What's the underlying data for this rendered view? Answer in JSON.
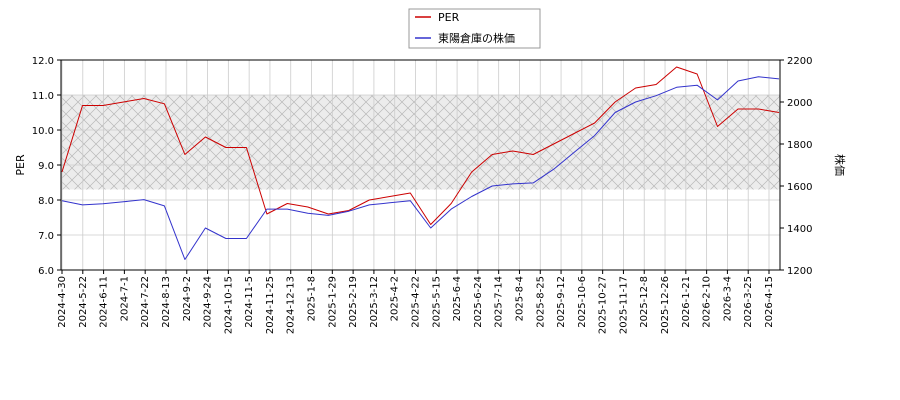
{
  "chart_data": {
    "type": "line",
    "ylabel_left": "PER",
    "ylabel_right": "株価",
    "ylim_left": [
      6.0,
      12.0
    ],
    "ylim_right": [
      1200,
      2200
    ],
    "yticks_left": [
      "6.0",
      "7.0",
      "8.0",
      "9.0",
      "10.0",
      "11.0",
      "12.0"
    ],
    "yticks_right": [
      "1200",
      "1400",
      "1600",
      "1800",
      "2000",
      "2200"
    ],
    "xticks": [
      "2024-4-30",
      "2024-5-22",
      "2024-6-11",
      "2024-7-1",
      "2024-7-22",
      "2024-8-13",
      "2024-9-2",
      "2024-9-24",
      "2024-10-15",
      "2024-11-5",
      "2024-11-25",
      "2024-12-13",
      "2025-1-8",
      "2025-1-29",
      "2025-2-19",
      "2025-3-12",
      "2025-4-2",
      "2025-4-22",
      "2025-5-15",
      "2025-6-4",
      "2025-6-24",
      "2025-7-14",
      "2025-8-4",
      "2025-8-25",
      "2025-9-12",
      "2025-10-6",
      "2025-10-27",
      "2025-11-17",
      "2025-12-8",
      "2025-12-26",
      "2026-1-21",
      "2026-2-10",
      "2026-3-4",
      "2026-3-25",
      "2026-4-15"
    ],
    "grid": true,
    "legend_position": "top-center",
    "shaded_band_left": [
      8.3,
      11.0
    ],
    "series": [
      {
        "name": "PER",
        "color": "#cc0000",
        "axis": "left",
        "x": [
          0,
          1,
          2,
          3,
          4,
          5,
          6,
          7,
          8,
          9,
          10,
          11,
          12,
          13,
          14,
          15,
          16,
          17,
          18,
          19,
          20,
          21,
          22,
          23,
          24,
          25,
          26,
          27,
          28,
          29,
          30,
          31,
          32,
          33,
          34,
          35
        ],
        "values": [
          8.8,
          10.7,
          10.7,
          10.8,
          10.9,
          10.75,
          9.3,
          9.8,
          9.5,
          9.5,
          7.6,
          7.9,
          7.8,
          7.6,
          7.7,
          8.0,
          8.1,
          8.2,
          7.3,
          7.9,
          8.8,
          9.3,
          9.4,
          9.3,
          9.6,
          9.9,
          10.2,
          10.8,
          11.2,
          11.3,
          11.8,
          11.6,
          10.1,
          10.6,
          10.6,
          10.5
        ]
      },
      {
        "name": "東陽倉庫の株価",
        "color": "#3333cc",
        "axis": "right",
        "x": [
          0,
          1,
          2,
          3,
          4,
          5,
          6,
          7,
          8,
          9,
          10,
          11,
          12,
          13,
          14,
          15,
          16,
          17,
          18,
          19,
          20,
          21,
          22,
          23,
          24,
          25,
          26,
          27,
          28,
          29,
          30,
          31,
          32,
          33,
          34,
          35
        ],
        "values": [
          1530,
          1510,
          1515,
          1525,
          1535,
          1505,
          1250,
          1400,
          1350,
          1350,
          1490,
          1490,
          1470,
          1460,
          1480,
          1510,
          1520,
          1530,
          1400,
          1490,
          1550,
          1600,
          1610,
          1615,
          1680,
          1760,
          1840,
          1950,
          2000,
          2030,
          2070,
          2080,
          2010,
          2100,
          2120,
          2110
        ]
      }
    ]
  }
}
